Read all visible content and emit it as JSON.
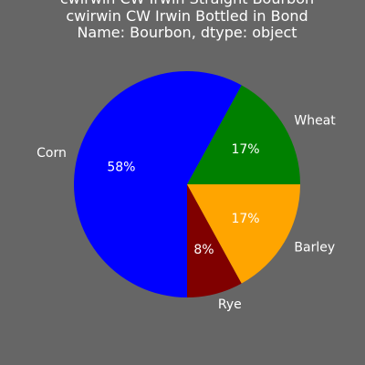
{
  "chart_data": {
    "type": "pie",
    "title_lines": [
      "cwirwin    CW Irwin Straight Bourbon",
      "cwirwin     CW Irwin Bottled in Bond",
      "Name: Bourbon, dtype: object"
    ],
    "categories": [
      "Wheat",
      "Corn",
      "Rye",
      "Barley"
    ],
    "values": [
      17,
      58,
      8,
      17
    ],
    "percent_labels": [
      "17%",
      "58%",
      "8%",
      "17%"
    ],
    "colors": [
      "#008000",
      "#0000ff",
      "#800000",
      "#ffa500"
    ],
    "start_angle_deg": 0,
    "direction": "counterclockwise",
    "legend": "none"
  },
  "style": {
    "background": "#666666",
    "text_color": "#ffffff"
  }
}
